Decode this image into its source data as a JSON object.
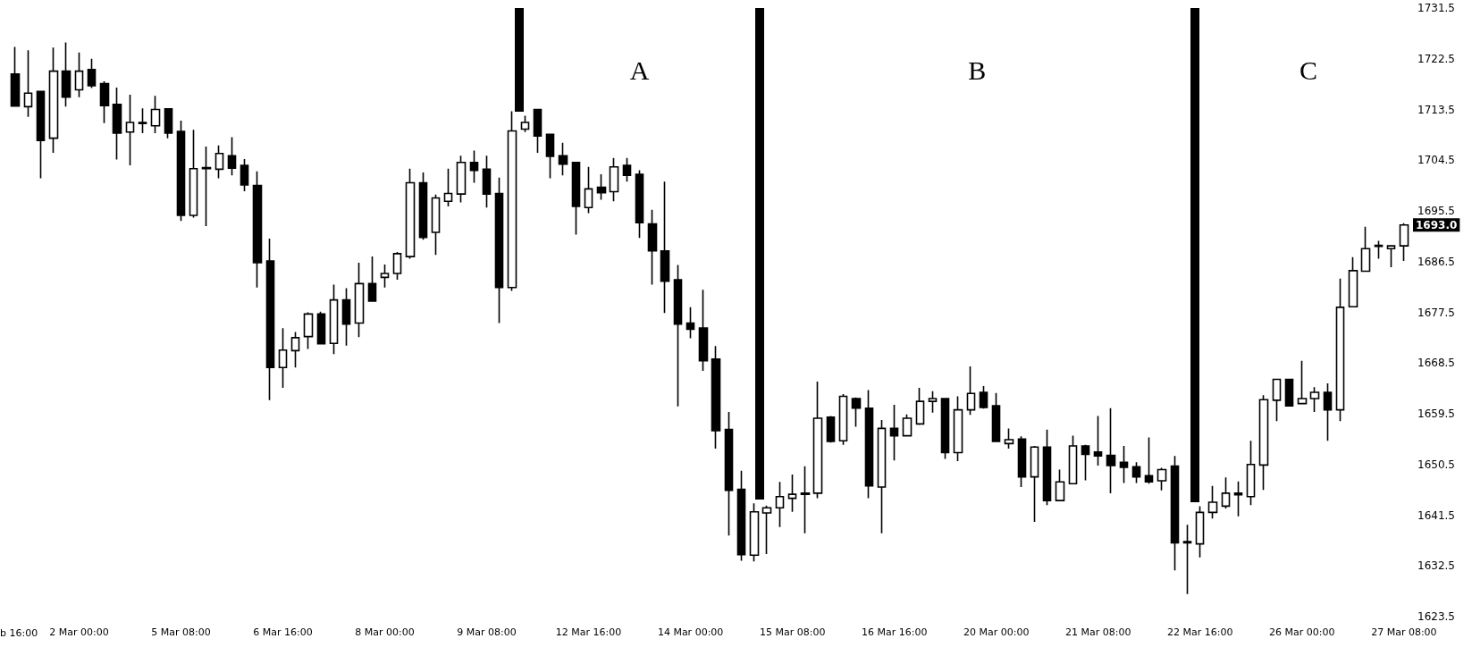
{
  "chart_data": {
    "type": "candlestick",
    "categories": [
      null,
      null,
      null,
      null,
      null,
      "2 Mar 00:00",
      null,
      null,
      null,
      null,
      null,
      null,
      null,
      "5 Mar 08:00",
      null,
      null,
      null,
      null,
      null,
      null,
      null,
      "6 Mar 16:00",
      null,
      null,
      null,
      null,
      null,
      null,
      null,
      "8 Mar 00:00",
      null,
      null,
      null,
      null,
      null,
      null,
      null,
      "9 Mar 08:00",
      null,
      null,
      null,
      null,
      null,
      null,
      null,
      "12 Mar 16:00",
      null,
      null,
      null,
      null,
      null,
      null,
      null,
      "14 Mar 00:00",
      null,
      null,
      null,
      null,
      null,
      null,
      null,
      "15 Mar 08:00",
      null,
      null,
      null,
      null,
      null,
      null,
      null,
      "16 Mar 16:00",
      null,
      null,
      null,
      null,
      null,
      null,
      null,
      "20 Mar 00:00",
      null,
      null,
      null,
      null,
      null,
      null,
      null,
      "21 Mar 08:00",
      null,
      null,
      null,
      null,
      null,
      null,
      null,
      "22 Mar 16:00",
      null,
      null,
      null,
      null,
      null,
      null,
      null,
      "26 Mar 00:00",
      null,
      null,
      null,
      null,
      null,
      null,
      null,
      "27 Mar 08:00"
    ],
    "ohlc": [
      [
        1719.8,
        1724.6,
        1714.1,
        1714.1
      ],
      [
        1714.0,
        1724.0,
        1712.2,
        1716.4
      ],
      [
        1716.7,
        1716.7,
        1701.3,
        1708.0
      ],
      [
        1708.4,
        1724.5,
        1705.8,
        1720.3
      ],
      [
        1720.3,
        1725.4,
        1714.0,
        1715.7
      ],
      [
        1717.0,
        1723.6,
        1715.7,
        1720.3
      ],
      [
        1720.6,
        1722.5,
        1717.3,
        1717.7
      ],
      [
        1718.1,
        1718.5,
        1711.1,
        1714.2
      ],
      [
        1714.4,
        1717.4,
        1704.6,
        1709.3
      ],
      [
        1709.5,
        1716.1,
        1703.6,
        1711.2
      ],
      [
        1711.0,
        1713.7,
        1709.3,
        1711.2
      ],
      [
        1710.6,
        1715.9,
        1709.3,
        1713.5
      ],
      [
        1713.6,
        1713.7,
        1708.4,
        1709.3
      ],
      [
        1709.6,
        1711.5,
        1693.7,
        1694.7
      ],
      [
        1694.7,
        1709.9,
        1694.3,
        1703.0
      ],
      [
        1703.0,
        1706.9,
        1692.8,
        1703.2
      ],
      [
        1702.9,
        1707.1,
        1701.3,
        1705.7
      ],
      [
        1705.3,
        1708.6,
        1701.8,
        1703.1
      ],
      [
        1703.6,
        1704.7,
        1699.0,
        1700.1
      ],
      [
        1700.0,
        1702.5,
        1681.9,
        1686.3
      ],
      [
        1686.6,
        1690.6,
        1661.9,
        1667.7
      ],
      [
        1667.7,
        1674.7,
        1664.1,
        1670.8
      ],
      [
        1670.7,
        1674.0,
        1667.7,
        1673.0
      ],
      [
        1673.2,
        1677.5,
        1671.0,
        1677.2
      ],
      [
        1677.2,
        1677.6,
        1671.8,
        1671.9
      ],
      [
        1672.0,
        1682.4,
        1670.1,
        1679.7
      ],
      [
        1679.7,
        1681.8,
        1671.6,
        1675.4
      ],
      [
        1675.6,
        1686.3,
        1673.1,
        1682.6
      ],
      [
        1682.6,
        1687.4,
        1679.5,
        1679.5
      ],
      [
        1683.7,
        1686.0,
        1681.9,
        1684.4
      ],
      [
        1684.4,
        1688.2,
        1683.3,
        1687.9
      ],
      [
        1687.4,
        1703.0,
        1687.0,
        1700.5
      ],
      [
        1700.5,
        1702.3,
        1690.4,
        1690.8
      ],
      [
        1691.7,
        1698.4,
        1687.7,
        1697.8
      ],
      [
        1697.2,
        1703.0,
        1696.3,
        1698.6
      ],
      [
        1698.5,
        1705.3,
        1697.0,
        1704.1
      ],
      [
        1704.1,
        1706.2,
        1700.5,
        1702.7
      ],
      [
        1702.9,
        1705.3,
        1696.1,
        1698.5
      ],
      [
        1698.6,
        1701.4,
        1675.6,
        1681.9
      ],
      [
        1681.9,
        1713.2,
        1681.3,
        1709.7
      ],
      [
        1710.0,
        1712.4,
        1709.5,
        1711.2
      ],
      [
        1713.5,
        1713.5,
        1705.8,
        1708.8
      ],
      [
        1709.1,
        1709.1,
        1701.3,
        1705.2
      ],
      [
        1705.3,
        1707.6,
        1701.8,
        1703.8
      ],
      [
        1704.1,
        1704.1,
        1691.3,
        1696.3
      ],
      [
        1696.1,
        1703.3,
        1695.1,
        1699.4
      ],
      [
        1699.7,
        1702.0,
        1697.5,
        1698.7
      ],
      [
        1698.9,
        1704.9,
        1697.2,
        1703.3
      ],
      [
        1703.6,
        1704.9,
        1700.7,
        1701.8
      ],
      [
        1702.0,
        1702.7,
        1690.7,
        1693.4
      ],
      [
        1693.2,
        1695.7,
        1682.4,
        1688.4
      ],
      [
        1688.4,
        1700.7,
        1677.4,
        1683.0
      ],
      [
        1683.3,
        1685.9,
        1660.8,
        1675.4
      ],
      [
        1675.6,
        1678.4,
        1672.9,
        1674.5
      ],
      [
        1674.7,
        1681.5,
        1667.1,
        1668.9
      ],
      [
        1669.2,
        1671.5,
        1653.3,
        1656.5
      ],
      [
        1656.7,
        1659.8,
        1637.9,
        1645.9
      ],
      [
        1646.1,
        1649.4,
        1633.4,
        1634.5
      ],
      [
        1634.4,
        1643.6,
        1633.3,
        1642.1
      ],
      [
        1641.9,
        1643.2,
        1634.6,
        1642.8
      ],
      [
        1642.8,
        1647.4,
        1639.4,
        1644.8
      ],
      [
        1644.5,
        1648.7,
        1642.1,
        1645.2
      ],
      [
        1645.2,
        1650.2,
        1638.3,
        1645.4
      ],
      [
        1645.4,
        1665.2,
        1644.5,
        1658.7
      ],
      [
        1658.9,
        1659.1,
        1654.4,
        1654.6
      ],
      [
        1654.7,
        1663.0,
        1654.0,
        1662.6
      ],
      [
        1662.2,
        1662.4,
        1657.2,
        1660.5
      ],
      [
        1660.5,
        1663.7,
        1644.5,
        1646.7
      ],
      [
        1646.5,
        1658.4,
        1638.3,
        1656.9
      ],
      [
        1656.9,
        1661.1,
        1651.2,
        1655.6
      ],
      [
        1655.6,
        1659.4,
        1655.5,
        1658.7
      ],
      [
        1657.7,
        1664.1,
        1657.5,
        1661.7
      ],
      [
        1661.7,
        1663.5,
        1659.7,
        1662.2
      ],
      [
        1662.2,
        1662.2,
        1651.5,
        1652.6
      ],
      [
        1652.6,
        1662.6,
        1651.1,
        1660.2
      ],
      [
        1660.2,
        1667.9,
        1659.3,
        1663.1
      ],
      [
        1663.3,
        1664.4,
        1660.4,
        1660.6
      ],
      [
        1660.9,
        1663.2,
        1654.6,
        1654.6
      ],
      [
        1654.2,
        1656.9,
        1653.3,
        1654.9
      ],
      [
        1655.0,
        1655.5,
        1646.5,
        1648.3
      ],
      [
        1648.3,
        1653.8,
        1640.3,
        1653.6
      ],
      [
        1653.6,
        1656.7,
        1643.3,
        1644.1
      ],
      [
        1644.1,
        1649.6,
        1644.1,
        1647.4
      ],
      [
        1647.1,
        1655.6,
        1647.1,
        1653.8
      ],
      [
        1653.8,
        1654.0,
        1647.7,
        1652.3
      ],
      [
        1652.7,
        1659.1,
        1650.3,
        1652.0
      ],
      [
        1652.1,
        1660.5,
        1645.4,
        1650.3
      ],
      [
        1650.9,
        1653.8,
        1647.2,
        1650.0
      ],
      [
        1650.1,
        1650.9,
        1647.2,
        1648.3
      ],
      [
        1648.5,
        1655.3,
        1647.1,
        1647.4
      ],
      [
        1647.6,
        1649.9,
        1645.9,
        1649.6
      ],
      [
        1650.2,
        1652.0,
        1631.7,
        1636.6
      ],
      [
        1636.8,
        1639.8,
        1627.5,
        1636.6
      ],
      [
        1636.4,
        1643.1,
        1634.0,
        1642.0
      ],
      [
        1642.0,
        1646.7,
        1640.9,
        1643.8
      ],
      [
        1643.1,
        1648.2,
        1642.7,
        1645.4
      ],
      [
        1645.4,
        1647.5,
        1641.3,
        1645.1
      ],
      [
        1644.8,
        1654.7,
        1643.3,
        1650.5
      ],
      [
        1650.4,
        1662.8,
        1646.0,
        1662.0
      ],
      [
        1661.9,
        1665.6,
        1658.2,
        1665.6
      ],
      [
        1665.6,
        1665.6,
        1660.9,
        1660.9
      ],
      [
        1661.3,
        1668.9,
        1661.3,
        1662.2
      ],
      [
        1662.2,
        1664.2,
        1659.8,
        1663.3
      ],
      [
        1663.3,
        1664.9,
        1654.7,
        1660.2
      ],
      [
        1660.2,
        1683.5,
        1658.2,
        1678.4
      ],
      [
        1678.5,
        1687.3,
        1678.5,
        1684.9
      ],
      [
        1684.8,
        1692.7,
        1684.8,
        1688.8
      ],
      [
        1689.4,
        1690.2,
        1687.0,
        1689.2
      ],
      [
        1688.8,
        1689.3,
        1685.5,
        1689.3
      ],
      [
        1689.3,
        1693.3,
        1686.6,
        1693.0
      ]
    ],
    "ylim": [
      1623.5,
      1731.5
    ],
    "yticks": [
      1623.5,
      1632.5,
      1641.5,
      1650.5,
      1659.5,
      1668.5,
      1677.5,
      1686.5,
      1695.5,
      1704.5,
      1713.5,
      1722.5,
      1731.5
    ],
    "grid": false,
    "annotations": [
      "b 16:00",
      "A",
      "B",
      "C",
      "1693.0"
    ]
  }
}
